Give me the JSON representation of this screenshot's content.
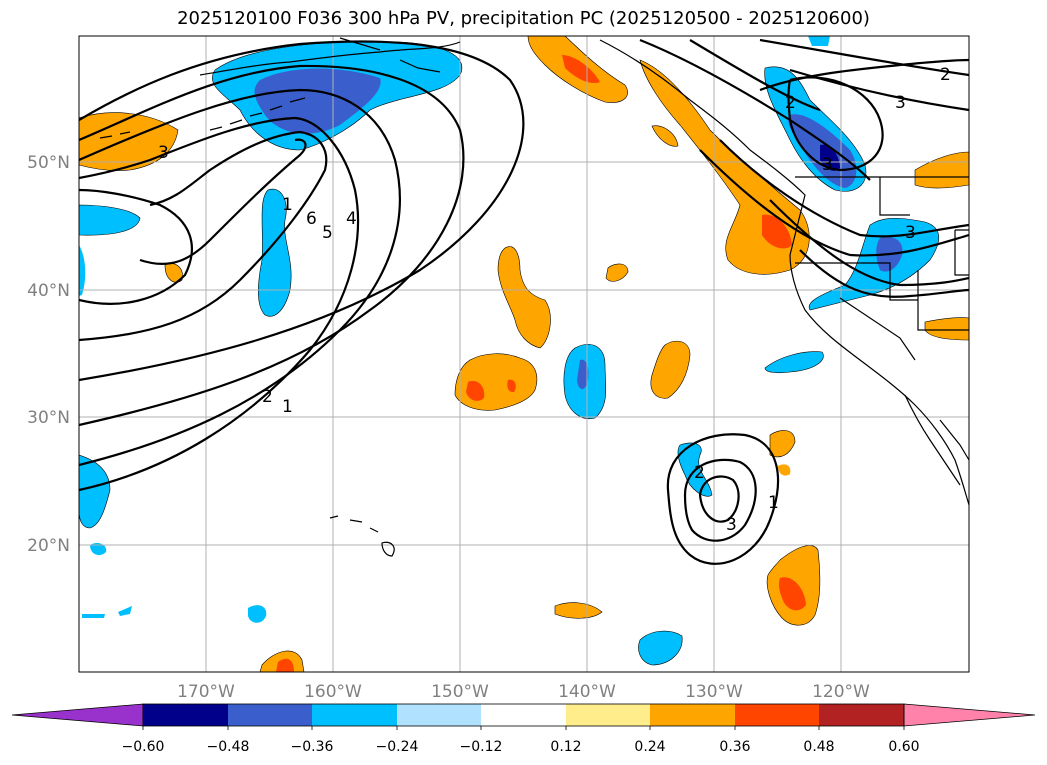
{
  "title": "2025120100 F036 300 hPa PV, precipitation PC (2025120500 - 2025120600)",
  "map": {
    "lat_labels": [
      "50°N",
      "40°N",
      "30°N",
      "20°N"
    ],
    "lon_labels": [
      "170°W",
      "160°W",
      "150°W",
      "140°W",
      "130°W",
      "120°W"
    ],
    "contour_labels": [
      "3",
      "1",
      "6",
      "5",
      "4",
      "2",
      "1",
      "2",
      "3",
      "2",
      "3",
      "3",
      "1",
      "2",
      "3"
    ]
  },
  "colorbar": {
    "labels": [
      "−0.60",
      "−0.48",
      "−0.36",
      "−0.24",
      "−0.12",
      "0.12",
      "0.24",
      "0.36",
      "0.48",
      "0.60"
    ],
    "colors": [
      "#9932cc",
      "#00008b",
      "#3a5fcd",
      "#00bfff",
      "#b0e2ff",
      "#ffffff",
      "#ffec8b",
      "#ffa500",
      "#ff4500",
      "#b22222",
      "#ff82ab"
    ]
  },
  "colors": {
    "neg_light": "#00bfff",
    "neg_mid": "#3a5fcd",
    "neg_dark": "#00008b",
    "pos_light": "#ffa500",
    "pos_mid": "#ff4500",
    "grid": "#b0b0b0",
    "tick": "#808080"
  }
}
